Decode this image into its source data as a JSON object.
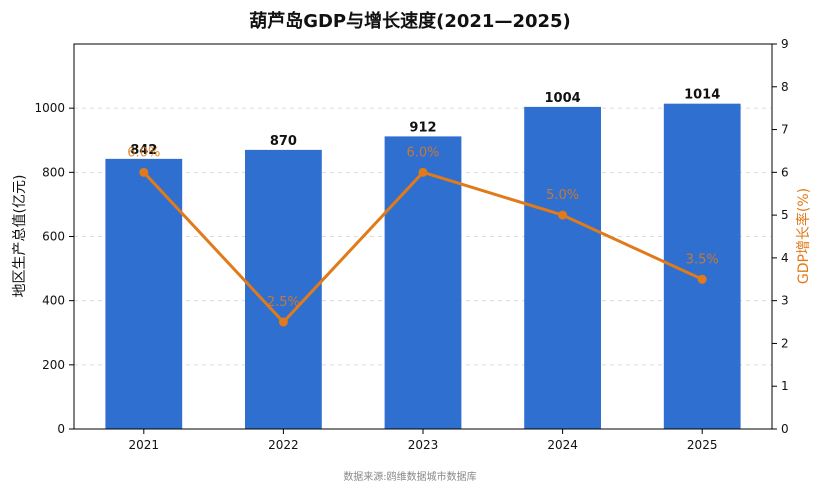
{
  "chart_data": {
    "type": "bar+line",
    "title": "葫芦岛GDP与增长速度(2021—2025)",
    "categories": [
      "2021",
      "2022",
      "2023",
      "2024",
      "2025"
    ],
    "series": [
      {
        "axis": "left",
        "type": "bar",
        "values": [
          842,
          870,
          912,
          1004,
          1014
        ],
        "labels": [
          "842",
          "870",
          "912",
          "1004",
          "1014"
        ],
        "color": "#2f6fd0"
      },
      {
        "axis": "right",
        "type": "line",
        "values": [
          6.0,
          2.5,
          6.0,
          5.0,
          3.5
        ],
        "labels": [
          "6.0%",
          "2.5%",
          "6.0%",
          "5.0%",
          "3.5%"
        ],
        "color": "#e07a1a"
      }
    ],
    "ylabel_left": "地区生产总值(亿元)",
    "ylabel_right": "GDP增长率(%)",
    "ylim_left": [
      0,
      1200
    ],
    "yticks_left": [
      0,
      200,
      400,
      600,
      800,
      1000
    ],
    "ylim_right": [
      0,
      9
    ],
    "yticks_right": [
      0,
      1,
      2,
      3,
      4,
      5,
      6,
      7,
      8,
      9
    ],
    "grid": "horizontal dashed",
    "source": "数据来源:鸥维数据城市数据库"
  }
}
